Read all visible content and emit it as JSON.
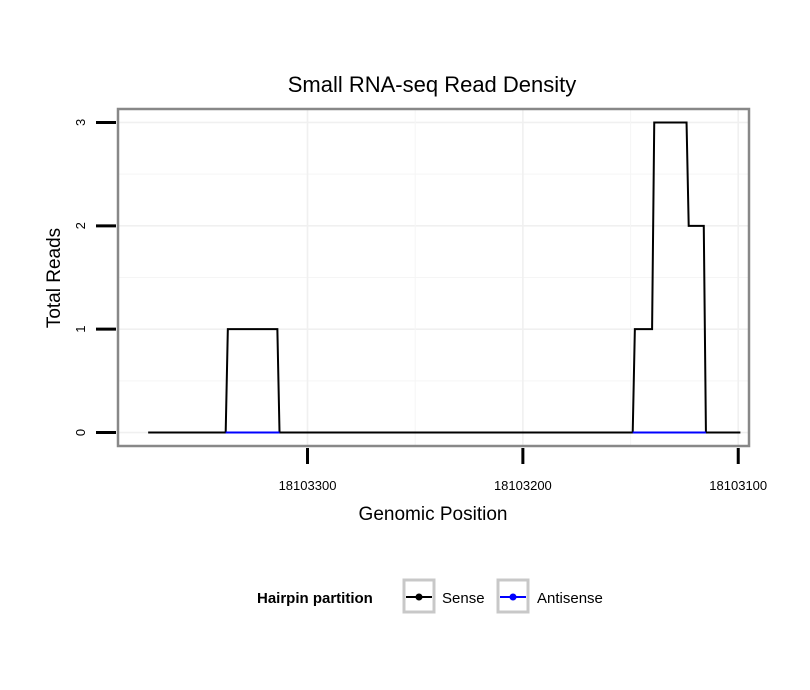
{
  "chart_data": {
    "type": "line",
    "title": "Small RNA-seq Read Density",
    "xlabel": "Genomic Position",
    "ylabel": "Total Reads",
    "x_reversed": true,
    "xlim": [
      18103388,
      18103095
    ],
    "ylim": [
      -0.13,
      3.13
    ],
    "x_ticks": [
      18103300,
      18103200,
      18103100
    ],
    "x_tick_labels": [
      "18103300",
      "18103200",
      "18103100"
    ],
    "y_ticks": [
      0,
      1,
      2,
      3
    ],
    "y_tick_labels": [
      "0",
      "1",
      "2",
      "3"
    ],
    "grid": true,
    "legend": {
      "title": "Hairpin partition",
      "position": "bottom",
      "entries": [
        {
          "label": "Sense",
          "color": "#000000"
        },
        {
          "label": "Antisense",
          "color": "#0000ff"
        }
      ]
    },
    "series": [
      {
        "name": "Sense",
        "color": "#000000",
        "x": [
          18103374,
          18103338,
          18103337,
          18103314,
          18103313,
          18103149,
          18103148,
          18103140,
          18103139,
          18103124,
          18103123,
          18103120,
          18103119,
          18103116,
          18103115,
          18103099
        ],
        "y": [
          0,
          0,
          1,
          1,
          0,
          0,
          1,
          1,
          3,
          3,
          2,
          2,
          2,
          2,
          0,
          0
        ]
      },
      {
        "name": "Antisense",
        "color": "#0000ff",
        "segments": [
          {
            "x": [
              18103338,
              18103313
            ],
            "y": [
              0,
              0
            ]
          },
          {
            "x": [
              18103149,
              18103115
            ],
            "y": [
              0,
              0
            ]
          }
        ]
      }
    ]
  }
}
